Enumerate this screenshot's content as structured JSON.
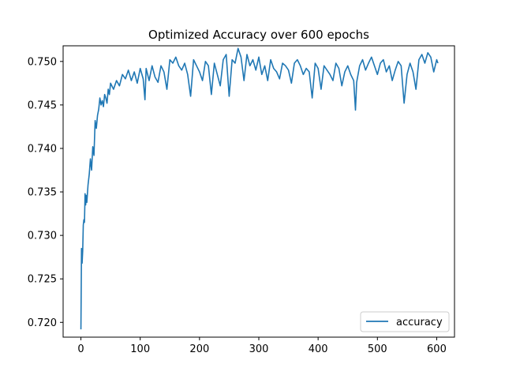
{
  "chart_data": {
    "type": "line",
    "title": "Optimized Accuracy over 600 epochs",
    "xlabel": "",
    "ylabel": "",
    "xlim": [
      -30,
      630
    ],
    "ylim": [
      0.7183,
      0.7518
    ],
    "xticks": [
      0,
      100,
      200,
      300,
      400,
      500,
      600
    ],
    "yticks": [
      0.72,
      0.725,
      0.73,
      0.735,
      0.74,
      0.745,
      0.75
    ],
    "xtick_labels": [
      "0",
      "100",
      "200",
      "300",
      "400",
      "500",
      "600"
    ],
    "ytick_labels": [
      "0.720",
      "0.725",
      "0.730",
      "0.735",
      "0.740",
      "0.745",
      "0.750"
    ],
    "grid": false,
    "legend_position": "bottom-right",
    "series": [
      {
        "name": "accuracy",
        "color": "#1f77b4",
        "x": [
          0,
          1,
          2,
          3,
          4,
          5,
          6,
          7,
          8,
          9,
          10,
          12,
          14,
          16,
          18,
          20,
          22,
          24,
          26,
          28,
          30,
          32,
          34,
          36,
          38,
          40,
          42,
          44,
          46,
          48,
          50,
          55,
          60,
          65,
          70,
          75,
          80,
          85,
          90,
          95,
          100,
          105,
          108,
          110,
          115,
          120,
          125,
          130,
          135,
          140,
          145,
          150,
          155,
          160,
          165,
          170,
          175,
          180,
          185,
          190,
          195,
          200,
          205,
          210,
          215,
          220,
          225,
          230,
          235,
          240,
          245,
          250,
          255,
          260,
          265,
          270,
          275,
          280,
          285,
          290,
          295,
          300,
          305,
          310,
          315,
          320,
          325,
          330,
          335,
          340,
          345,
          350,
          355,
          360,
          365,
          370,
          375,
          380,
          385,
          390,
          395,
          400,
          405,
          410,
          415,
          420,
          425,
          430,
          435,
          440,
          445,
          450,
          455,
          460,
          463,
          465,
          470,
          475,
          480,
          485,
          490,
          495,
          500,
          505,
          510,
          515,
          520,
          525,
          530,
          535,
          540,
          545,
          550,
          555,
          560,
          565,
          570,
          575,
          580,
          585,
          590,
          595,
          600,
          602
        ],
        "y": [
          0.7192,
          0.7285,
          0.7268,
          0.7282,
          0.7312,
          0.7318,
          0.7315,
          0.7348,
          0.7335,
          0.7346,
          0.7338,
          0.7358,
          0.737,
          0.7388,
          0.7375,
          0.7402,
          0.7392,
          0.7432,
          0.7423,
          0.7438,
          0.7445,
          0.7458,
          0.745,
          0.7455,
          0.7448,
          0.7462,
          0.7458,
          0.7452,
          0.7468,
          0.7462,
          0.7475,
          0.7468,
          0.7478,
          0.7472,
          0.7485,
          0.748,
          0.749,
          0.7478,
          0.7488,
          0.7475,
          0.7492,
          0.748,
          0.7456,
          0.7492,
          0.7478,
          0.7495,
          0.7482,
          0.7476,
          0.7495,
          0.7488,
          0.7468,
          0.7502,
          0.7498,
          0.7505,
          0.7495,
          0.749,
          0.7498,
          0.7485,
          0.746,
          0.7502,
          0.7495,
          0.7488,
          0.7478,
          0.75,
          0.7495,
          0.7462,
          0.7498,
          0.7485,
          0.7472,
          0.7502,
          0.7508,
          0.746,
          0.7502,
          0.7498,
          0.7515,
          0.7505,
          0.7478,
          0.7508,
          0.7495,
          0.7502,
          0.749,
          0.7505,
          0.7485,
          0.7495,
          0.7478,
          0.7502,
          0.7492,
          0.7488,
          0.748,
          0.7498,
          0.7495,
          0.749,
          0.7475,
          0.7498,
          0.7502,
          0.7495,
          0.7485,
          0.7492,
          0.7488,
          0.7458,
          0.7498,
          0.7492,
          0.7468,
          0.7495,
          0.749,
          0.7485,
          0.7478,
          0.7498,
          0.7492,
          0.7472,
          0.7488,
          0.7495,
          0.7485,
          0.7478,
          0.7444,
          0.7476,
          0.7495,
          0.7502,
          0.749,
          0.7498,
          0.7505,
          0.7495,
          0.7485,
          0.7498,
          0.7502,
          0.7488,
          0.7495,
          0.7478,
          0.749,
          0.75,
          0.7495,
          0.7452,
          0.7485,
          0.7498,
          0.7488,
          0.7468,
          0.7502,
          0.7508,
          0.7498,
          0.751,
          0.7505,
          0.7488,
          0.7502,
          0.7498
        ]
      }
    ]
  }
}
